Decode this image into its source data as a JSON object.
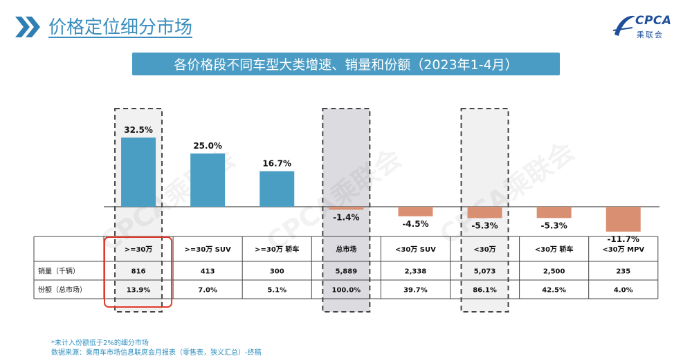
{
  "page": {
    "title": "价格定位细分市场",
    "banner": "各价格段不同车型大类增速、销量和份额（2023年1-4月）",
    "logo_text": "CPCA",
    "logo_sub": "乘联会",
    "watermark": "CPCA乘联会",
    "footnotes": [
      "*未计入份额低于2%的细分市场",
      "数据来源：乘用车市场信息联席会月报表（零售表，狭义汇总）-终稿"
    ]
  },
  "colors": {
    "title": "#3a8dbe",
    "banner": "#4a9cc4",
    "positive_bar": "#4a9ec4",
    "negative_bar": "#d99072",
    "highlight_border": "#e03a2a",
    "total_fill": "#dcdce0",
    "light_fill": "#f1f1f1",
    "footnote": "#2f8fbf"
  },
  "chart_data": {
    "type": "bar",
    "categories": [
      ">=30万",
      ">=30万 SUV",
      ">=30万 轿车",
      "总市场",
      "<30万 SUV",
      "<30万",
      "<30万 轿车",
      "<30万 MPV"
    ],
    "values": [
      32.5,
      25.0,
      16.7,
      -1.4,
      -4.5,
      -5.3,
      -5.3,
      -11.7
    ],
    "value_labels": [
      "32.5%",
      "25.0%",
      "16.7%",
      "-1.4%",
      "-4.5%",
      "-5.3%",
      "-5.3%",
      "-11.7%"
    ],
    "table": {
      "rows": [
        {
          "label": "销量（千辆）",
          "values": [
            "816",
            "413",
            "300",
            "5,889",
            "2,338",
            "5,073",
            "2,500",
            "235"
          ]
        },
        {
          "label": "份额（总市场）",
          "values": [
            "13.9%",
            "7.0%",
            "5.1%",
            "100.0%",
            "39.7%",
            "86.1%",
            "42.5%",
            "4.0%"
          ]
        }
      ]
    },
    "highlighted_columns": [
      0,
      3,
      5
    ]
  }
}
